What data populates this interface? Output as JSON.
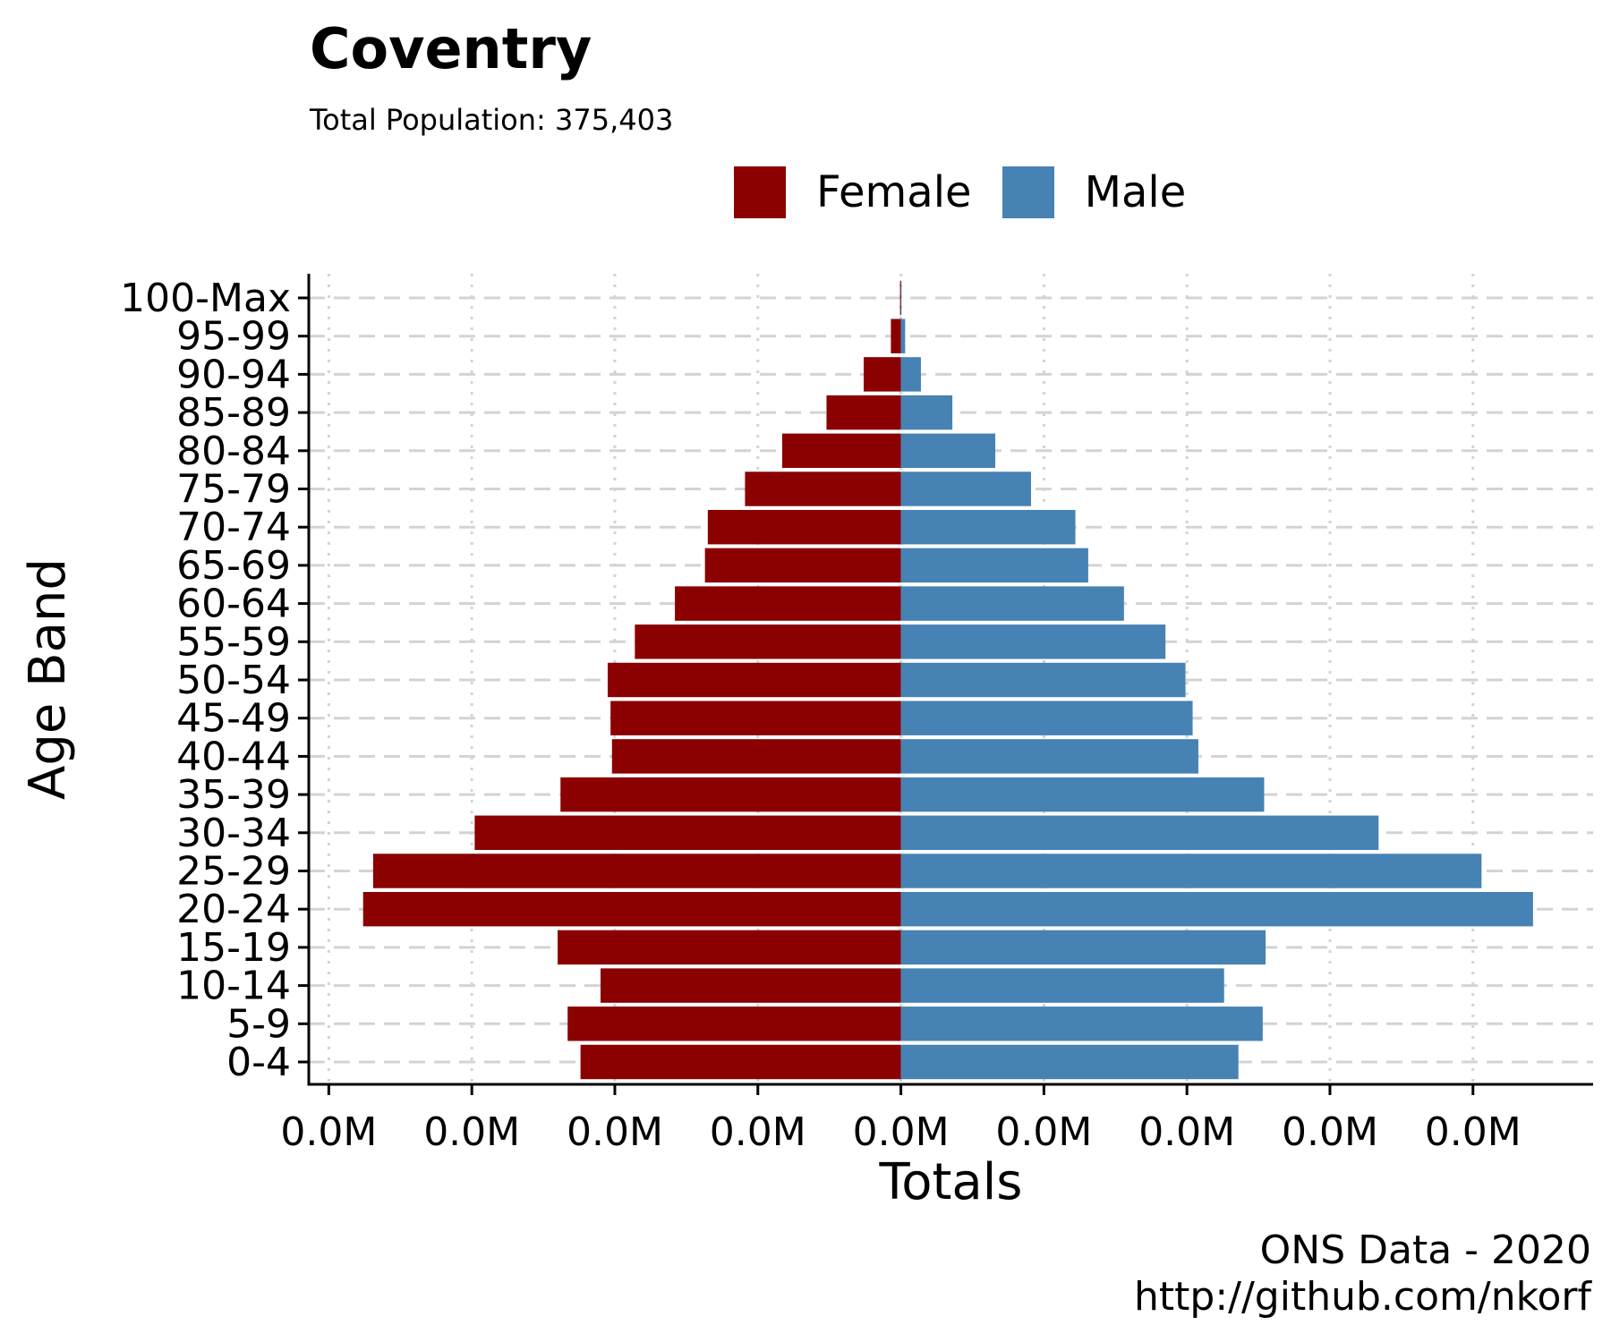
{
  "chart_data": {
    "type": "bar",
    "orientation": "horizontal",
    "layout": "population-pyramid",
    "title": "Coventry",
    "subtitle": "Total Population:  375,403",
    "xlabel": "Totals",
    "ylabel": "Age Band",
    "caption_lines": [
      "ONS Data - 2020",
      "http://github.com/nkorf"
    ],
    "categories": [
      "0-4",
      "5-9",
      "10-14",
      "15-19",
      "20-24",
      "25-29",
      "30-34",
      "35-39",
      "40-44",
      "45-49",
      "50-54",
      "55-59",
      "60-64",
      "65-69",
      "70-74",
      "75-79",
      "80-84",
      "85-89",
      "90-94",
      "95-99",
      "100-Max"
    ],
    "x_tick_labels": [
      "0.0M",
      "0.0M",
      "0.0M",
      "0.0M",
      "0.0M",
      "0.0M",
      "0.0M",
      "0.0M",
      "0.0M"
    ],
    "x_ticks": [
      -20000,
      -15000,
      -10000,
      -5000,
      0,
      5000,
      10000,
      15000,
      20000
    ],
    "xlim": [
      -20700,
      24200
    ],
    "grid": true,
    "legend_position": "top",
    "series": [
      {
        "name": "Female",
        "color": "#8B0000",
        "values": [
          11200,
          11650,
          10500,
          12000,
          18800,
          18450,
          14900,
          11900,
          10100,
          10150,
          10250,
          9300,
          7900,
          6850,
          6750,
          5450,
          4150,
          2600,
          1300,
          350,
          30
        ]
      },
      {
        "name": "Male",
        "color": "#4682B4",
        "values": [
          11800,
          12650,
          11300,
          12750,
          22100,
          20300,
          16700,
          12700,
          10400,
          10200,
          9950,
          9250,
          7800,
          6550,
          6100,
          4550,
          3300,
          1800,
          700,
          150,
          20
        ]
      }
    ]
  }
}
